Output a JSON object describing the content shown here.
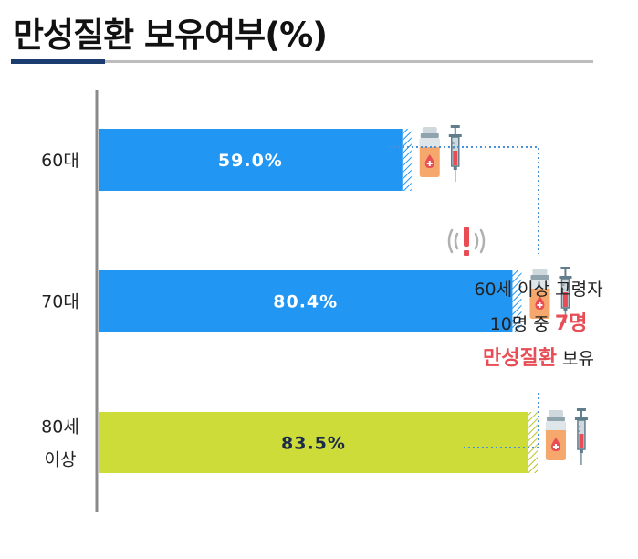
{
  "title": "만성질환 보유여부(%)",
  "colors": {
    "blue": "#2196f3",
    "green": "#cddc39",
    "red": "#e84c55",
    "axis": "#8a8a8a",
    "dotted": "#4a90d9"
  },
  "chart_data": {
    "type": "bar",
    "orientation": "horizontal",
    "title": "만성질환 보유여부(%)",
    "categories": [
      [
        "60대"
      ],
      [
        "70대"
      ],
      [
        "80세",
        "이상"
      ]
    ],
    "values": [
      59.0,
      80.4,
      83.5
    ],
    "value_labels": [
      "59.0%",
      "80.4%",
      "83.5%"
    ],
    "bar_colors": [
      "#2196f3",
      "#2196f3",
      "#cddc39"
    ],
    "xlim": [
      0,
      100
    ]
  },
  "callout": {
    "line1": "60세 이상 고령자",
    "line2_pre": "10명 중 ",
    "line2_hl": "7명",
    "line3_hl": "만성질환",
    "line3_post": " 보유"
  },
  "icons": [
    "medicine-bottle-icon",
    "syringe-icon",
    "alert-icon"
  ]
}
